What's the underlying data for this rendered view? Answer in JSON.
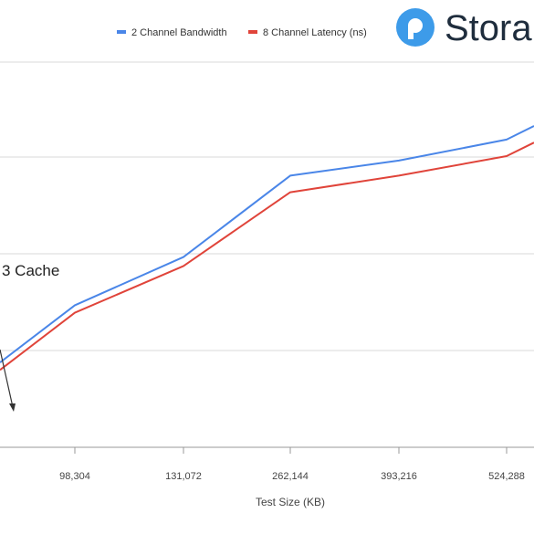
{
  "chart_data": {
    "type": "line",
    "x_tick_labels": [
      "98,304",
      "131,072",
      "262,144",
      "393,216",
      "524,288"
    ],
    "x_points": [
      "",
      "98,304",
      "131,072",
      "262,144",
      "",
      "524,288",
      ""
    ],
    "xlabel": "Test Size (KB)",
    "ylabel": "",
    "series": [
      {
        "name": "2 Channel Bandwidth",
        "color": "#4a86e8",
        "values": [
          0.215,
          0.405,
          0.565,
          0.835,
          0.885,
          0.955,
          1.0
        ]
      },
      {
        "name": "8 Channel Latency (ns)",
        "color": "#e0443a",
        "values": [
          0.19,
          0.38,
          0.535,
          0.78,
          0.835,
          0.9,
          0.945
        ]
      }
    ],
    "annotation": "3 Cache",
    "legend_position": "top",
    "grid": true
  },
  "logo": {
    "text": "Stora",
    "icon": "storage-logo-icon",
    "color": "#3d9be9"
  }
}
